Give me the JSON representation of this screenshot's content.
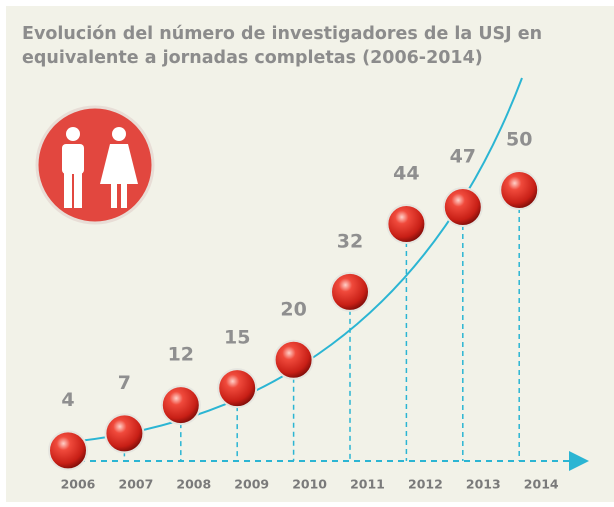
{
  "chart_data": {
    "type": "ball",
    "title": [
      "Evolución del número de investigadores de la USJ en",
      "equivalente a jornadas completas (2006-2014)"
    ],
    "categories": [
      "2006",
      "2007",
      "2008",
      "2009",
      "2010",
      "2011",
      "2012",
      "2013",
      "2014"
    ],
    "values": [
      4,
      7,
      12,
      15,
      20,
      32,
      44,
      47,
      50
    ],
    "ylim": [
      0,
      50
    ],
    "color": "#d9332b",
    "line_color": "#2bb5d3"
  }
}
